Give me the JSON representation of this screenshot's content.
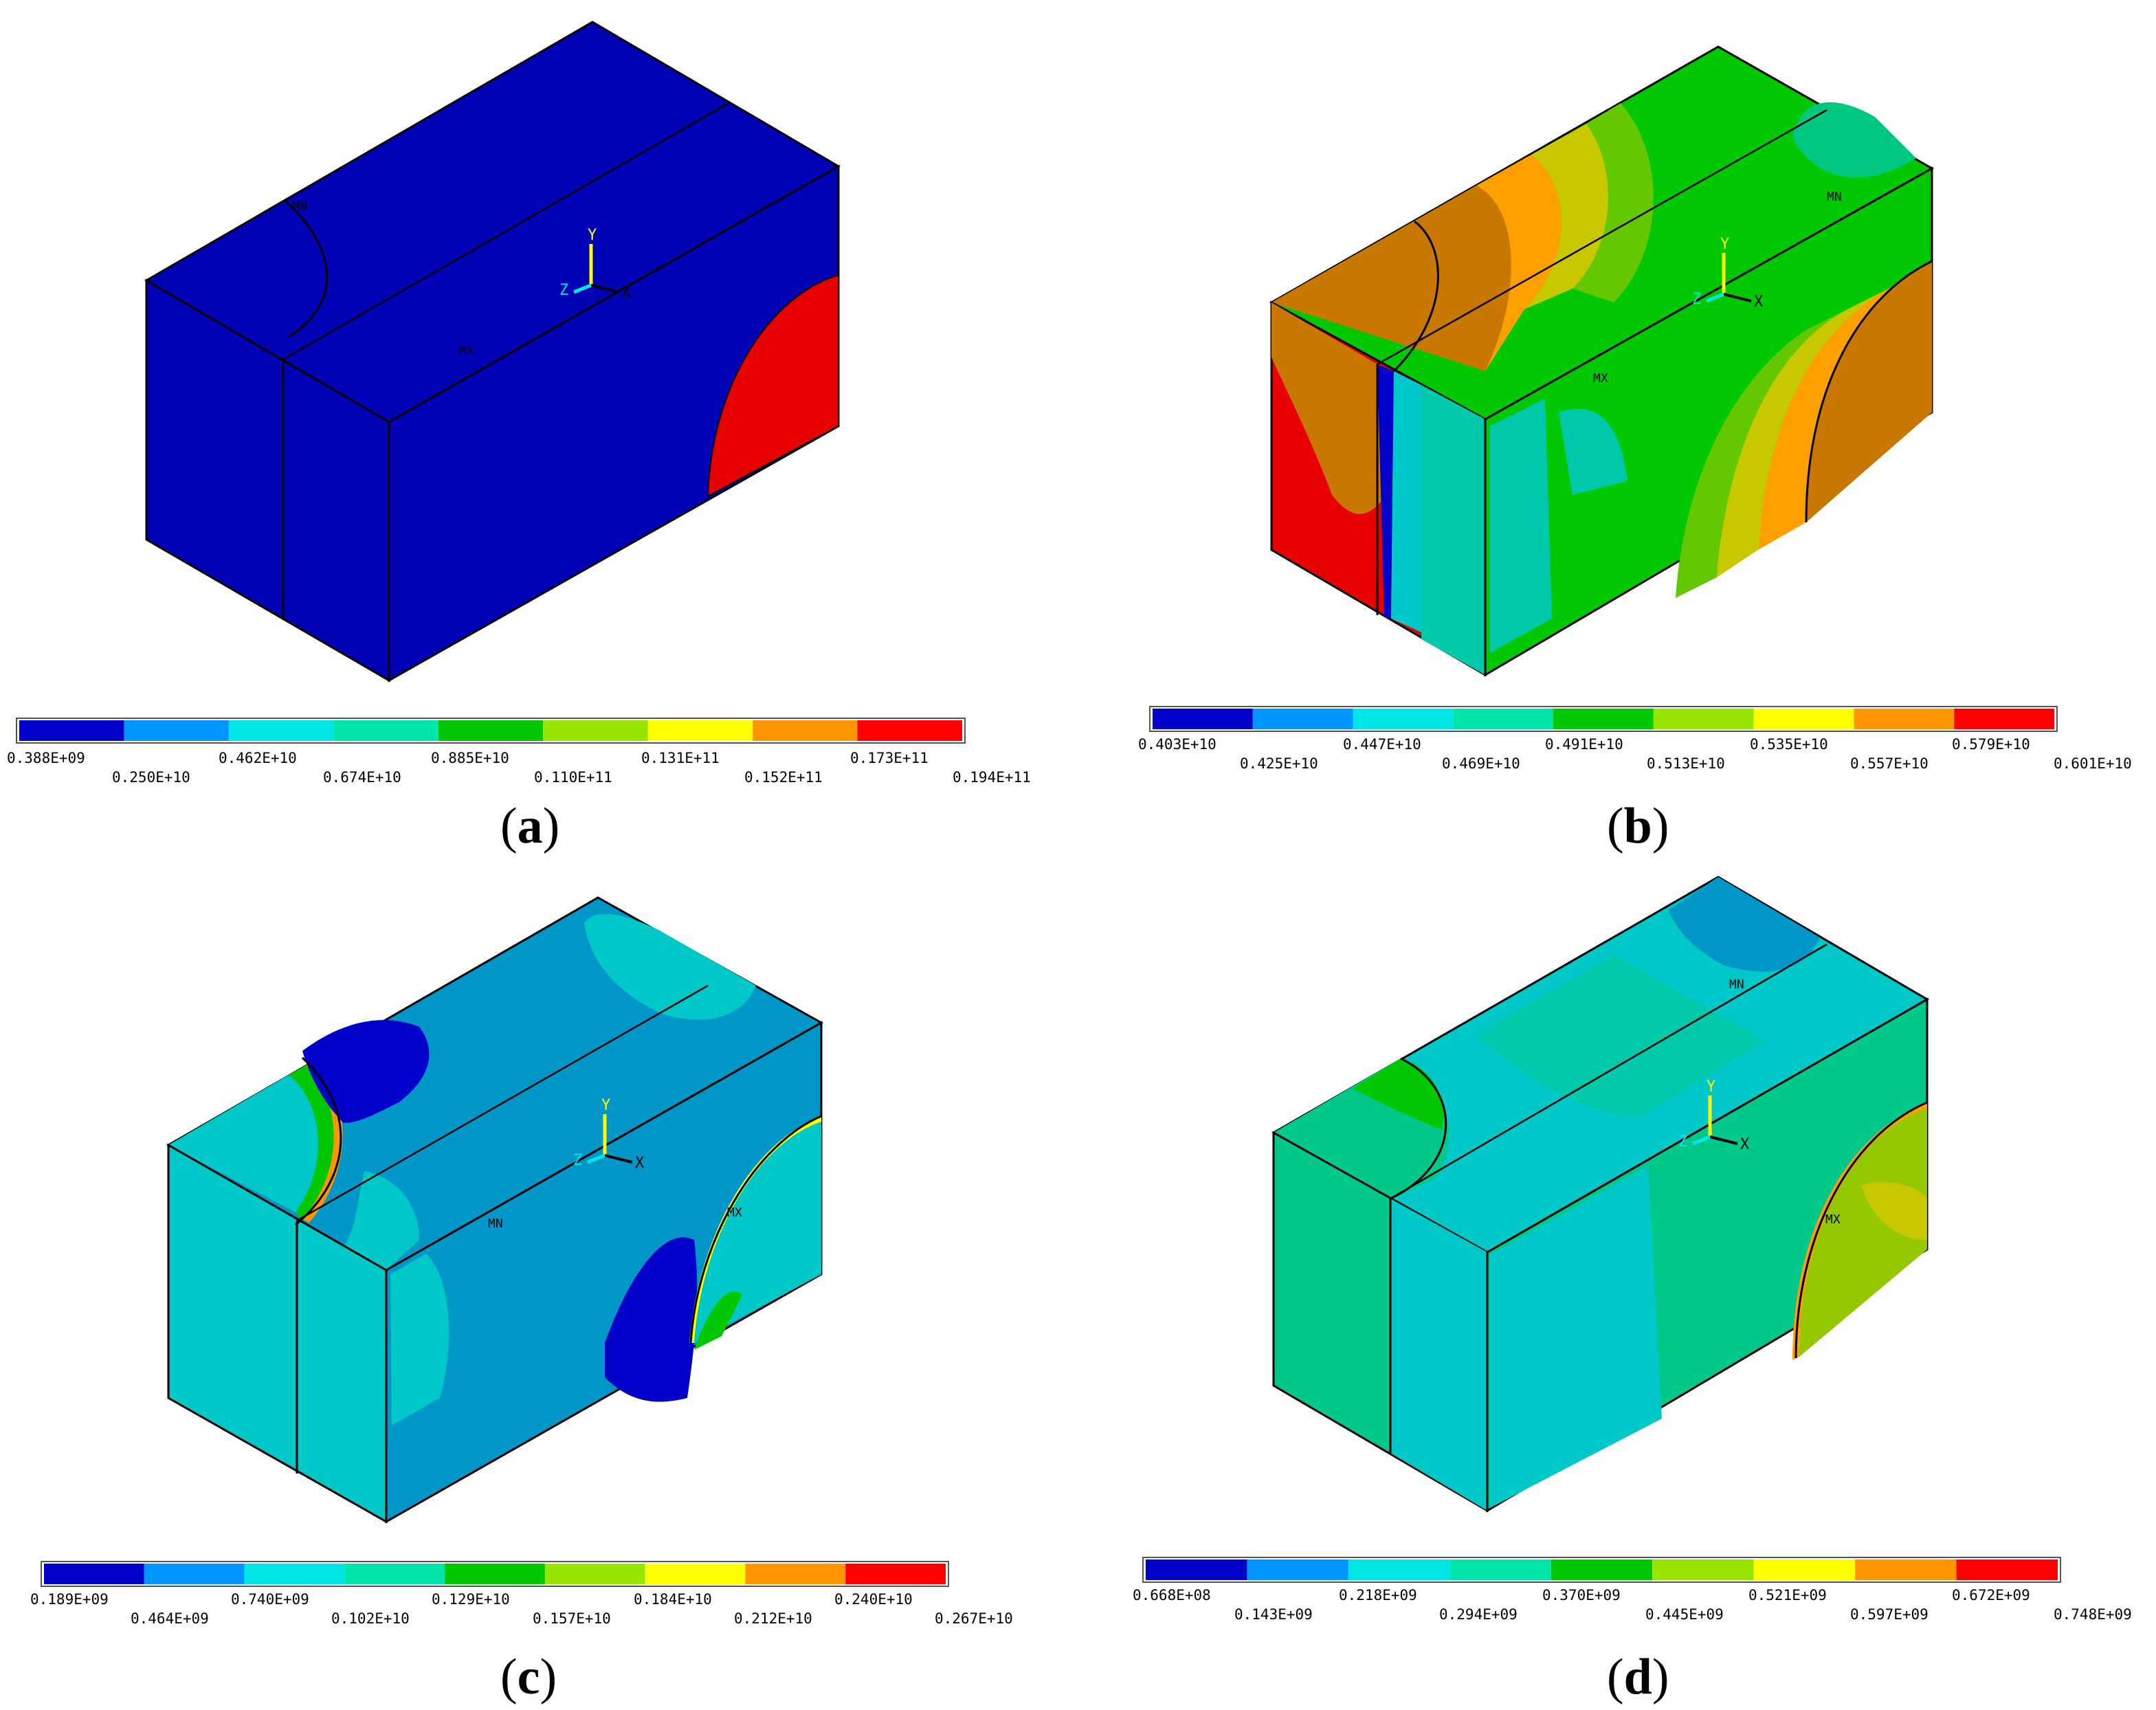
{
  "legend_colors": [
    "#0000c8",
    "#0096ff",
    "#00e6e6",
    "#00e6aa",
    "#00c800",
    "#96e600",
    "#ffff00",
    "#ff9600",
    "#ff0000"
  ],
  "panels": [
    {
      "letter": "a",
      "markers": {
        "mn": "MN",
        "mx": "MX"
      },
      "legend_top": [
        "0.388E+09",
        "0.462E+10",
        "0.885E+10",
        "0.131E+11",
        "0.173E+11"
      ],
      "legend_bottom": [
        "0.250E+10",
        "0.674E+10",
        "0.110E+11",
        "0.152E+11",
        "0.194E+11"
      ]
    },
    {
      "letter": "b",
      "markers": {
        "mn": "MN",
        "mx": "MX"
      },
      "legend_top": [
        "0.403E+10",
        "0.447E+10",
        "0.491E+10",
        "0.535E+10",
        "0.579E+10"
      ],
      "legend_bottom": [
        "0.425E+10",
        "0.469E+10",
        "0.513E+10",
        "0.557E+10",
        "0.601E+10"
      ]
    },
    {
      "letter": "c",
      "markers": {
        "mn": "MN",
        "mx": "MX"
      },
      "legend_top": [
        "0.189E+09",
        "0.740E+09",
        "0.129E+10",
        "0.184E+10",
        "0.240E+10"
      ],
      "legend_bottom": [
        "0.464E+09",
        "0.102E+10",
        "0.157E+10",
        "0.212E+10",
        "0.267E+10"
      ]
    },
    {
      "letter": "d",
      "markers": {
        "mn": "MN",
        "mx": "MX"
      },
      "legend_top": [
        "0.668E+08",
        "0.218E+09",
        "0.370E+09",
        "0.521E+09",
        "0.672E+09"
      ],
      "legend_bottom": [
        "0.143E+09",
        "0.294E+09",
        "0.445E+09",
        "0.597E+09",
        "0.748E+09"
      ]
    }
  ],
  "axis_triad": {
    "x": "X",
    "y": "Y",
    "z": "Z"
  }
}
